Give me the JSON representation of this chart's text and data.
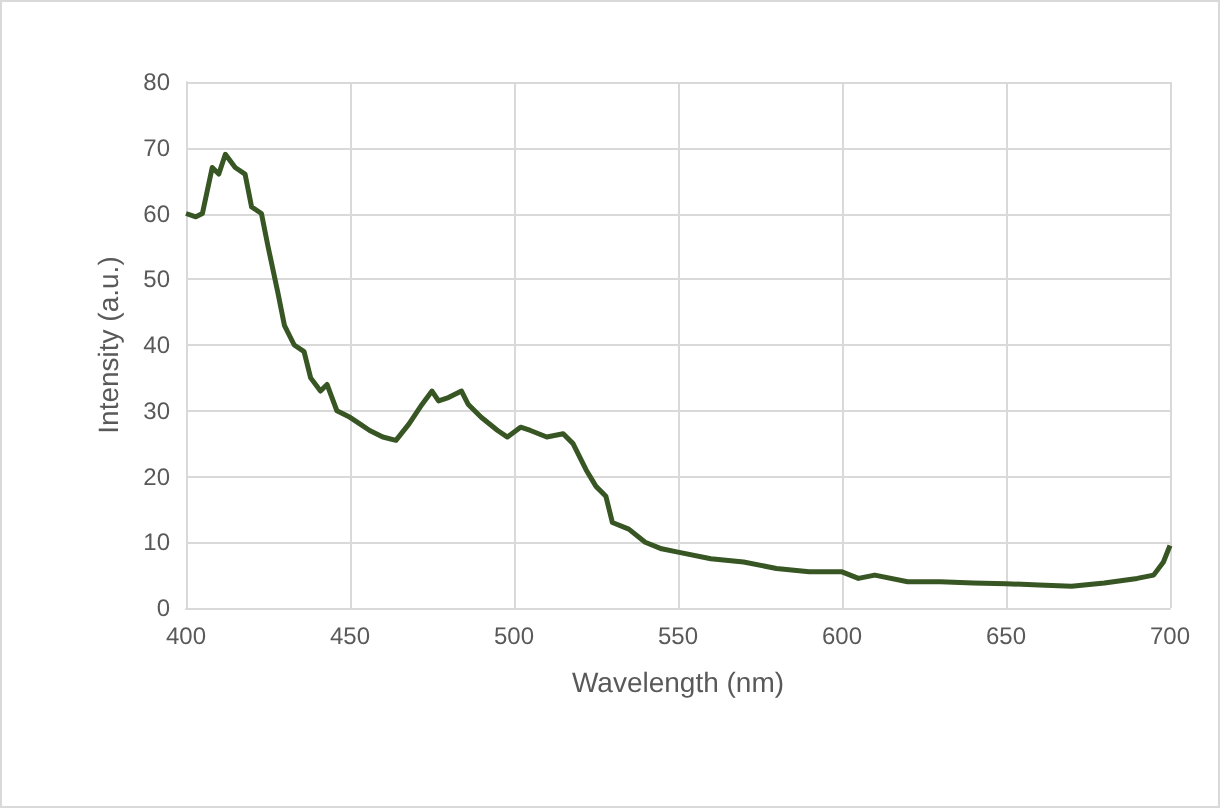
{
  "chart_data": {
    "type": "line",
    "xlabel": "Wavelength (nm)",
    "ylabel": "Intensity (a.u.)",
    "x": [
      400,
      403,
      405,
      408,
      410,
      412,
      415,
      418,
      420,
      423,
      425,
      428,
      430,
      433,
      436,
      438,
      441,
      443,
      446,
      450,
      453,
      456,
      460,
      464,
      468,
      472,
      475,
      477,
      480,
      484,
      486,
      490,
      495,
      498,
      502,
      505,
      510,
      515,
      518,
      522,
      525,
      528,
      530,
      535,
      540,
      545,
      550,
      560,
      570,
      580,
      590,
      600,
      605,
      610,
      620,
      630,
      640,
      650,
      660,
      670,
      680,
      690,
      695,
      698,
      700
    ],
    "series": [
      {
        "color": "#375623",
        "values": [
          60,
          59.5,
          60,
          67,
          66,
          69,
          67,
          66,
          61,
          60,
          55,
          48,
          43,
          40,
          39,
          35,
          33,
          34,
          30,
          29,
          28,
          27,
          26,
          25.5,
          28,
          31,
          33,
          31.5,
          32,
          33,
          31,
          29,
          27,
          26,
          27.5,
          27,
          26,
          26.5,
          25,
          21,
          18.5,
          17,
          13,
          12,
          10,
          9,
          8.5,
          7.5,
          7,
          6,
          5.5,
          5.5,
          4.5,
          5,
          4,
          4,
          3.8,
          3.7,
          3.5,
          3.3,
          3.8,
          4.5,
          5,
          7,
          9.5
        ]
      }
    ],
    "xlim": [
      400,
      700
    ],
    "xticks": [
      400,
      450,
      500,
      550,
      600,
      650,
      700
    ],
    "ylim": [
      0,
      80
    ],
    "yticks": [
      0,
      10,
      20,
      30,
      40,
      50,
      60,
      70,
      80
    ],
    "grid": true,
    "marker": "none",
    "line_style": "solid"
  }
}
